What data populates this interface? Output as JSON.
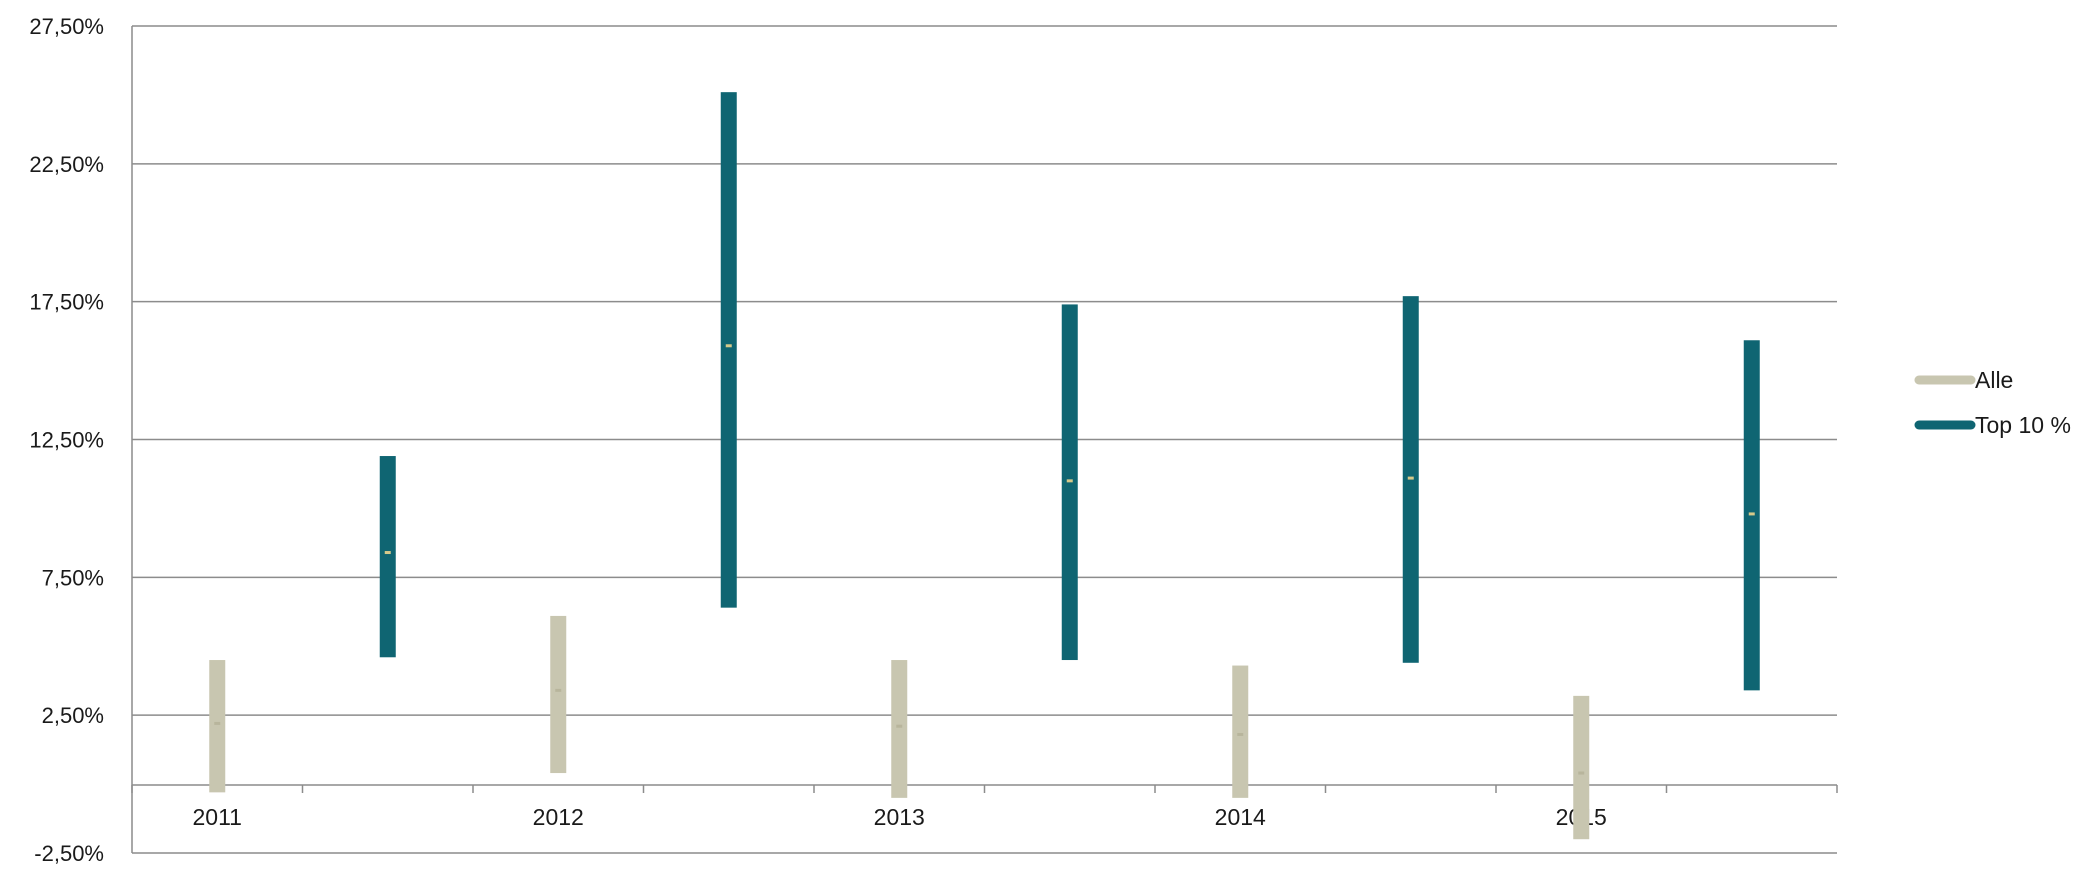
{
  "chart_data": {
    "type": "range-bar",
    "x_labels": [
      "2011",
      "2012",
      "2013",
      "2014",
      "2015"
    ],
    "y_ticks": [
      "-2,50%",
      "2,50%",
      "7,50%",
      "12,50%",
      "17,50%",
      "22,50%",
      "27,50%"
    ],
    "ylim": [
      -2.5,
      27.5
    ],
    "grid": true,
    "legend_position": "right",
    "series": [
      {
        "name": "Alle",
        "color": "#c8c6b0",
        "marker_color": "#b8b59c",
        "low": [
          -0.3,
          0.4,
          -0.5,
          -0.5,
          -2.0
        ],
        "high": [
          4.5,
          6.1,
          4.5,
          4.3,
          3.2
        ],
        "mid": [
          2.2,
          3.4,
          2.1,
          1.8,
          0.4
        ]
      },
      {
        "name": "Top 10 %",
        "color": "#0f6572",
        "marker_color": "#d6c98a",
        "low": [
          4.6,
          6.4,
          4.5,
          4.4,
          3.4
        ],
        "high": [
          11.9,
          25.1,
          17.4,
          17.7,
          16.1
        ],
        "mid": [
          8.4,
          15.9,
          11.0,
          11.1,
          9.8
        ]
      }
    ]
  }
}
